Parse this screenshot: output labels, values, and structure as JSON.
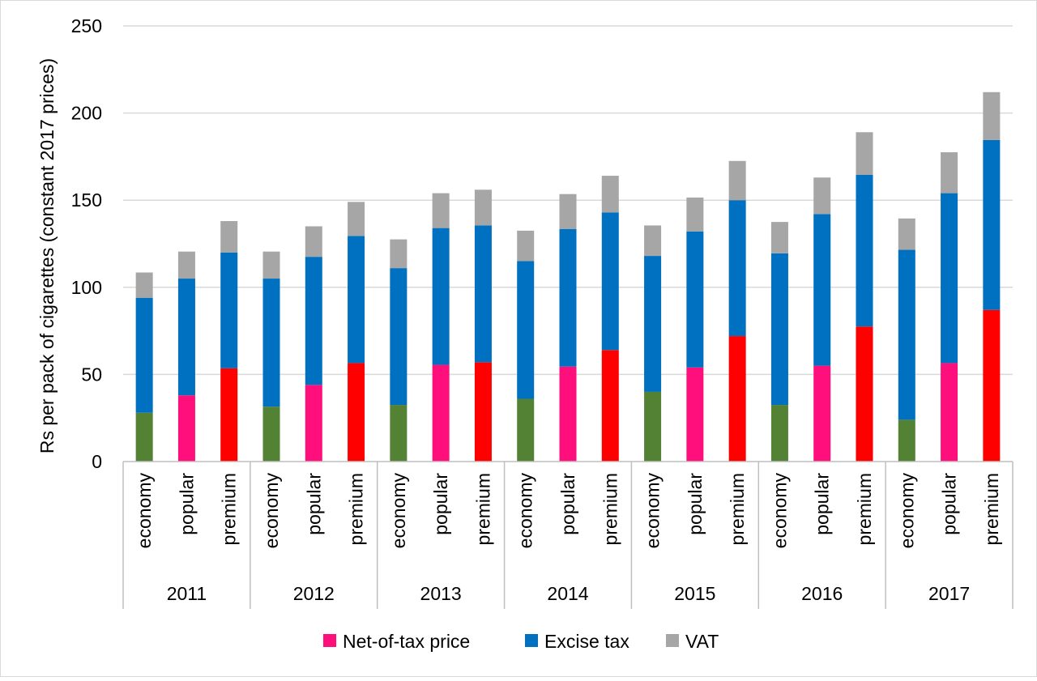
{
  "chart_data": {
    "type": "bar",
    "stacked": true,
    "title": "",
    "ylabel": "Rs per pack of cigarettes (constant 2017 prices)",
    "xlabel": "",
    "ylim": [
      0,
      250
    ],
    "yticks": [
      0,
      50,
      100,
      150,
      200,
      250
    ],
    "grid": true,
    "legend_position": "bottom",
    "groups": [
      "2011",
      "2012",
      "2013",
      "2014",
      "2015",
      "2016",
      "2017"
    ],
    "subcategories": [
      "economy",
      "popular",
      "premium"
    ],
    "categories": [
      "economy",
      "popular",
      "premium",
      "economy",
      "popular",
      "premium",
      "economy",
      "popular",
      "premium",
      "economy",
      "popular",
      "premium",
      "economy",
      "popular",
      "premium",
      "economy",
      "popular",
      "premium",
      "economy",
      "popular",
      "premium"
    ],
    "net_of_tax_colors": {
      "economy": "#548235",
      "popular": "#ff0f7b",
      "premium": "#ff0000"
    },
    "series": [
      {
        "name": "Net-of-tax price",
        "color": "#ff0f7b",
        "values": [
          28,
          38,
          53.5,
          31.5,
          44,
          56.5,
          32.5,
          55.5,
          57,
          36,
          54.5,
          64,
          40,
          54,
          72,
          32.5,
          55,
          77.5,
          24,
          56.5,
          87
        ]
      },
      {
        "name": "Excise tax",
        "color": "#0070c0",
        "values": [
          66,
          67,
          66.5,
          73.5,
          73.5,
          73,
          78.5,
          78.5,
          78.5,
          79,
          79,
          79,
          78,
          78,
          78,
          87,
          87,
          87,
          97.5,
          97.5,
          97.5
        ]
      },
      {
        "name": "VAT",
        "color": "#a6a6a6",
        "values": [
          14.5,
          15.5,
          18,
          15.5,
          17.5,
          19.5,
          16.5,
          20,
          20.5,
          17.5,
          20,
          21,
          17.5,
          19.5,
          22.5,
          18,
          21,
          24.5,
          18,
          23.5,
          27.5
        ]
      }
    ]
  }
}
